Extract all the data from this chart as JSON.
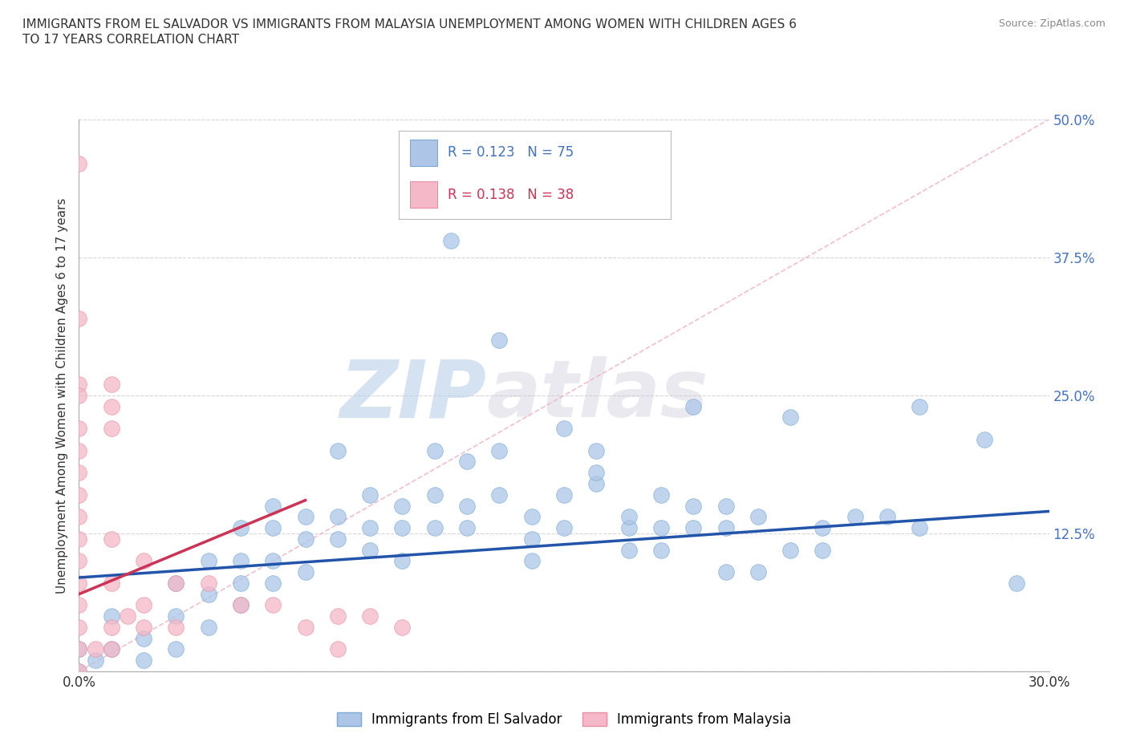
{
  "title_line1": "IMMIGRANTS FROM EL SALVADOR VS IMMIGRANTS FROM MALAYSIA UNEMPLOYMENT AMONG WOMEN WITH CHILDREN AGES 6",
  "title_line2": "TO 17 YEARS CORRELATION CHART",
  "source": "Source: ZipAtlas.com",
  "ylabel": "Unemployment Among Women with Children Ages 6 to 17 years",
  "xmin": 0.0,
  "xmax": 0.3,
  "ymin": 0.0,
  "ymax": 0.5,
  "xticks": [
    0.0,
    0.05,
    0.1,
    0.15,
    0.2,
    0.25,
    0.3
  ],
  "xticklabels": [
    "0.0%",
    "",
    "",
    "",
    "",
    "",
    "30.0%"
  ],
  "yticks": [
    0.0,
    0.125,
    0.25,
    0.375,
    0.5
  ],
  "yticklabels_right": [
    "",
    "12.5%",
    "25.0%",
    "37.5%",
    "50.0%"
  ],
  "el_salvador_R": 0.123,
  "el_salvador_N": 75,
  "malaysia_R": 0.138,
  "malaysia_N": 38,
  "el_salvador_color": "#adc6e8",
  "malaysia_color": "#f5b8c8",
  "el_salvador_edge": "#7aaad4",
  "malaysia_edge": "#e88fa4",
  "el_salvador_line_color": "#2255aa",
  "malaysia_line_color": "#cc3355",
  "legend_text_blue": "#4472c4",
  "legend_text_pink": "#cc3355",
  "diag_line_color": "#f0b8c8",
  "el_salvador_scatter": [
    [
      0.0,
      0.02
    ],
    [
      0.0,
      0.0
    ],
    [
      0.005,
      0.01
    ],
    [
      0.01,
      0.05
    ],
    [
      0.01,
      0.02
    ],
    [
      0.02,
      0.03
    ],
    [
      0.02,
      0.01
    ],
    [
      0.03,
      0.08
    ],
    [
      0.03,
      0.05
    ],
    [
      0.03,
      0.02
    ],
    [
      0.04,
      0.1
    ],
    [
      0.04,
      0.07
    ],
    [
      0.04,
      0.04
    ],
    [
      0.05,
      0.13
    ],
    [
      0.05,
      0.1
    ],
    [
      0.05,
      0.08
    ],
    [
      0.05,
      0.06
    ],
    [
      0.06,
      0.15
    ],
    [
      0.06,
      0.13
    ],
    [
      0.06,
      0.1
    ],
    [
      0.06,
      0.08
    ],
    [
      0.07,
      0.14
    ],
    [
      0.07,
      0.12
    ],
    [
      0.07,
      0.09
    ],
    [
      0.08,
      0.2
    ],
    [
      0.08,
      0.14
    ],
    [
      0.08,
      0.12
    ],
    [
      0.09,
      0.16
    ],
    [
      0.09,
      0.13
    ],
    [
      0.09,
      0.11
    ],
    [
      0.1,
      0.15
    ],
    [
      0.1,
      0.13
    ],
    [
      0.1,
      0.1
    ],
    [
      0.11,
      0.2
    ],
    [
      0.11,
      0.16
    ],
    [
      0.11,
      0.13
    ],
    [
      0.115,
      0.39
    ],
    [
      0.12,
      0.19
    ],
    [
      0.12,
      0.15
    ],
    [
      0.12,
      0.13
    ],
    [
      0.13,
      0.3
    ],
    [
      0.13,
      0.2
    ],
    [
      0.13,
      0.16
    ],
    [
      0.14,
      0.14
    ],
    [
      0.14,
      0.12
    ],
    [
      0.14,
      0.1
    ],
    [
      0.15,
      0.22
    ],
    [
      0.15,
      0.16
    ],
    [
      0.15,
      0.13
    ],
    [
      0.16,
      0.2
    ],
    [
      0.16,
      0.17
    ],
    [
      0.16,
      0.18
    ],
    [
      0.17,
      0.13
    ],
    [
      0.17,
      0.11
    ],
    [
      0.17,
      0.14
    ],
    [
      0.18,
      0.16
    ],
    [
      0.18,
      0.13
    ],
    [
      0.18,
      0.11
    ],
    [
      0.19,
      0.15
    ],
    [
      0.19,
      0.13
    ],
    [
      0.19,
      0.24
    ],
    [
      0.2,
      0.15
    ],
    [
      0.2,
      0.09
    ],
    [
      0.2,
      0.13
    ],
    [
      0.21,
      0.14
    ],
    [
      0.21,
      0.09
    ],
    [
      0.22,
      0.11
    ],
    [
      0.22,
      0.23
    ],
    [
      0.23,
      0.13
    ],
    [
      0.23,
      0.11
    ],
    [
      0.24,
      0.14
    ],
    [
      0.25,
      0.14
    ],
    [
      0.26,
      0.24
    ],
    [
      0.26,
      0.13
    ],
    [
      0.28,
      0.21
    ],
    [
      0.29,
      0.08
    ]
  ],
  "malaysia_scatter": [
    [
      0.0,
      0.46
    ],
    [
      0.0,
      0.32
    ],
    [
      0.0,
      0.26
    ],
    [
      0.0,
      0.25
    ],
    [
      0.0,
      0.22
    ],
    [
      0.0,
      0.2
    ],
    [
      0.0,
      0.18
    ],
    [
      0.0,
      0.16
    ],
    [
      0.0,
      0.14
    ],
    [
      0.0,
      0.12
    ],
    [
      0.0,
      0.1
    ],
    [
      0.0,
      0.08
    ],
    [
      0.0,
      0.06
    ],
    [
      0.0,
      0.04
    ],
    [
      0.0,
      0.02
    ],
    [
      0.0,
      0.0
    ],
    [
      0.005,
      0.02
    ],
    [
      0.01,
      0.26
    ],
    [
      0.01,
      0.24
    ],
    [
      0.01,
      0.22
    ],
    [
      0.01,
      0.12
    ],
    [
      0.01,
      0.08
    ],
    [
      0.01,
      0.04
    ],
    [
      0.01,
      0.02
    ],
    [
      0.015,
      0.05
    ],
    [
      0.02,
      0.1
    ],
    [
      0.02,
      0.06
    ],
    [
      0.02,
      0.04
    ],
    [
      0.03,
      0.08
    ],
    [
      0.03,
      0.04
    ],
    [
      0.04,
      0.08
    ],
    [
      0.05,
      0.06
    ],
    [
      0.06,
      0.06
    ],
    [
      0.07,
      0.04
    ],
    [
      0.08,
      0.05
    ],
    [
      0.08,
      0.02
    ],
    [
      0.09,
      0.05
    ],
    [
      0.1,
      0.04
    ]
  ],
  "watermark_zip": "ZIP",
  "watermark_atlas": "atlas",
  "background_color": "#ffffff",
  "grid_color": "#cccccc"
}
